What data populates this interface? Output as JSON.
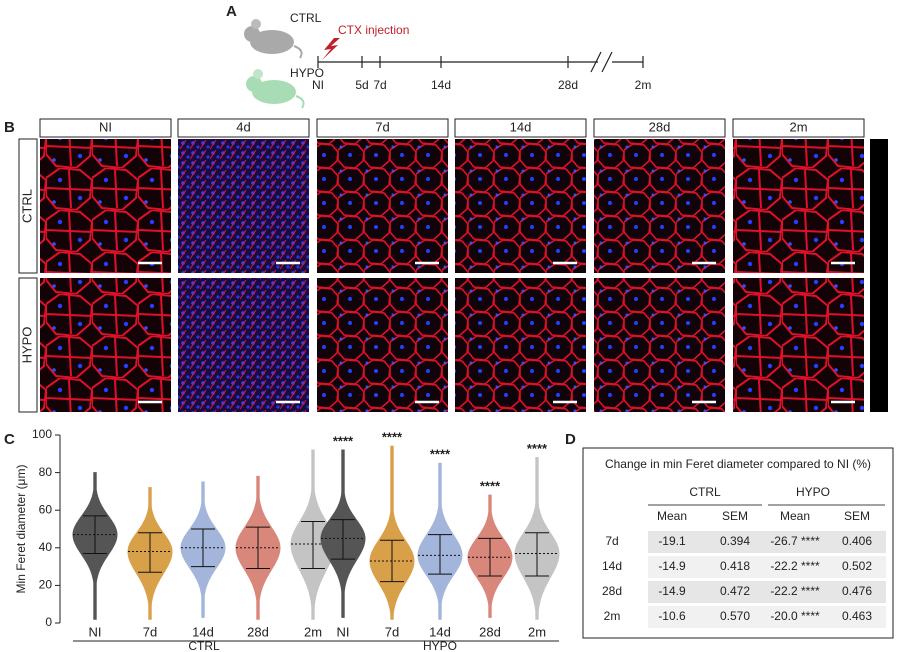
{
  "panel_labels": [
    "A",
    "B",
    "C",
    "D"
  ],
  "timeline": {
    "groups": [
      "CTRL",
      "HYPO"
    ],
    "injection": "CTX injection",
    "points": [
      "NI",
      "5d",
      "7d",
      "14d",
      "28d",
      "2m"
    ]
  },
  "images": {
    "columns": [
      "NI",
      "4d",
      "7d",
      "14d",
      "28d",
      "2m"
    ],
    "rows": [
      "CTRL",
      "HYPO"
    ]
  },
  "chart_data": {
    "type": "violin",
    "y_label": "Min Feret diameter (μm)",
    "ylim": [
      0,
      100
    ],
    "yticks": [
      0,
      20,
      40,
      60,
      80,
      100
    ],
    "groups": [
      {
        "name": "CTRL",
        "categories": [
          "NI",
          "7d",
          "14d",
          "28d",
          "2m"
        ],
        "colors": [
          "#555555",
          "#d9a04a",
          "#a3b5da",
          "#d9877a",
          "#c4c4c4"
        ],
        "min": [
          2,
          2,
          3,
          2,
          2
        ],
        "q1": [
          37,
          27,
          30,
          29,
          29
        ],
        "median": [
          47,
          38,
          40,
          40,
          42
        ],
        "q3": [
          57,
          48,
          50,
          51,
          54
        ],
        "max": [
          80,
          72,
          75,
          78,
          92
        ]
      },
      {
        "name": "HYPO",
        "categories": [
          "NI",
          "7d",
          "14d",
          "28d",
          "2m"
        ],
        "colors": [
          "#555555",
          "#d9a04a",
          "#a3b5da",
          "#d9877a",
          "#c4c4c4"
        ],
        "min": [
          3,
          2,
          2,
          3,
          2
        ],
        "q1": [
          34,
          22,
          26,
          25,
          25
        ],
        "median": [
          45,
          33,
          36,
          35,
          37
        ],
        "q3": [
          55,
          44,
          47,
          45,
          48
        ],
        "max": [
          92,
          94,
          85,
          68,
          88
        ],
        "significance": [
          "****",
          "****",
          "****",
          "****",
          "****"
        ]
      }
    ]
  },
  "table": {
    "title": "Change in min Feret diameter compared to NI (%)",
    "groups": [
      "CTRL",
      "HYPO"
    ],
    "columns": [
      "Mean",
      "SEM",
      "Mean",
      "SEM"
    ],
    "rows": [
      [
        "7d",
        "-19.1",
        "0.394",
        "-26.7 ****",
        "0.406"
      ],
      [
        "14d",
        "-14.9",
        "0.418",
        "-22.2 ****",
        "0.502"
      ],
      [
        "28d",
        "-14.9",
        "0.472",
        "-22.2 ****",
        "0.476"
      ],
      [
        "2m",
        "-10.6",
        "0.570",
        "-20.0 ****",
        "0.463"
      ]
    ]
  }
}
